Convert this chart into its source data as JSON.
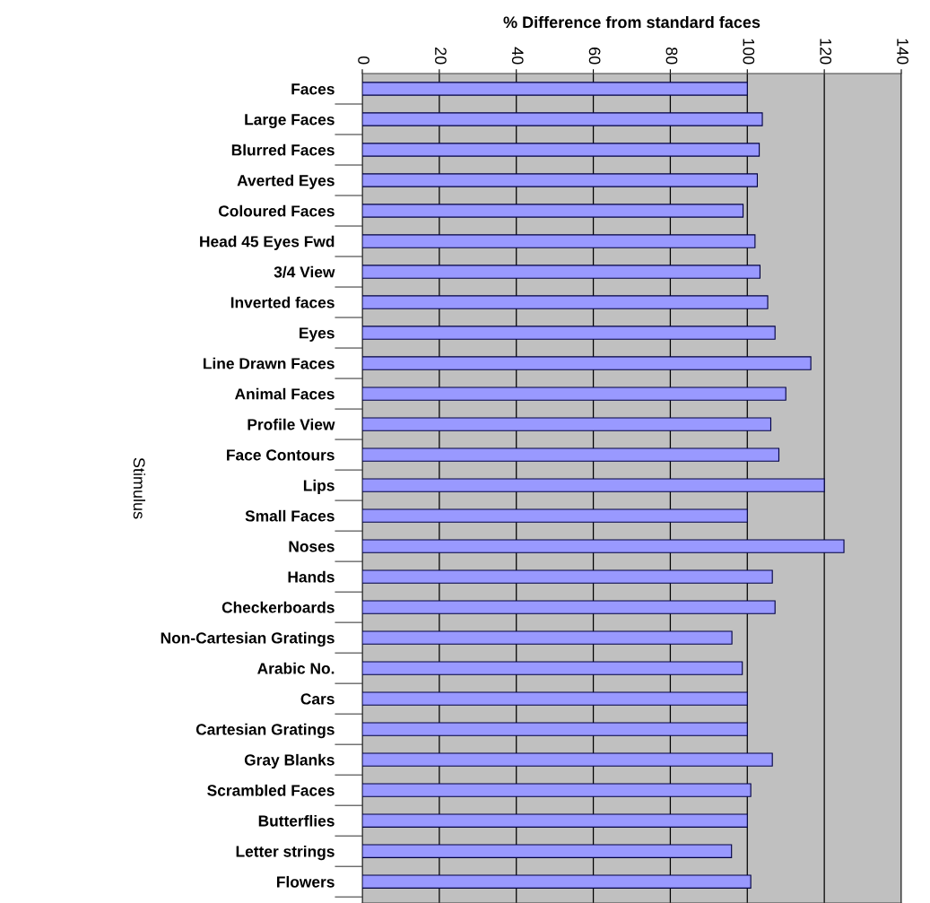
{
  "chart_data": {
    "type": "bar",
    "orientation": "horizontal",
    "xlabel": "% Difference from standard faces",
    "ylabel": "Stimulus",
    "categories": [
      "Faces",
      "Large Faces",
      "Blurred Faces",
      "Averted Eyes",
      "Coloured Faces",
      "Head 45 Eyes Fwd",
      "3/4 View",
      "Inverted faces",
      "Eyes",
      "Line Drawn Faces",
      "Animal Faces",
      "Profile View",
      "Face Contours",
      "Lips",
      "Small Faces",
      "Noses",
      "Hands",
      "Checkerboards",
      "Non-Cartesian Gratings",
      "Arabic No.",
      "Cars",
      "Cartesian Gratings",
      "Gray Blanks",
      "Scrambled Faces",
      "Butterflies",
      "Letter strings",
      "Flowers"
    ],
    "values": [
      100,
      103.9,
      103.1,
      102.6,
      98.9,
      102.0,
      103.3,
      105.3,
      107.2,
      116.5,
      110.0,
      106.1,
      108.2,
      120,
      100,
      125.1,
      106.5,
      107.2,
      96.0,
      98.7,
      100,
      100,
      106.5,
      100.9,
      100,
      95.9,
      100.9
    ],
    "color": "#9999ff",
    "xlim": [
      0,
      140
    ],
    "xticks": [
      0,
      20,
      40,
      60,
      80,
      100,
      120,
      140
    ],
    "grid": "x",
    "legend": false
  }
}
